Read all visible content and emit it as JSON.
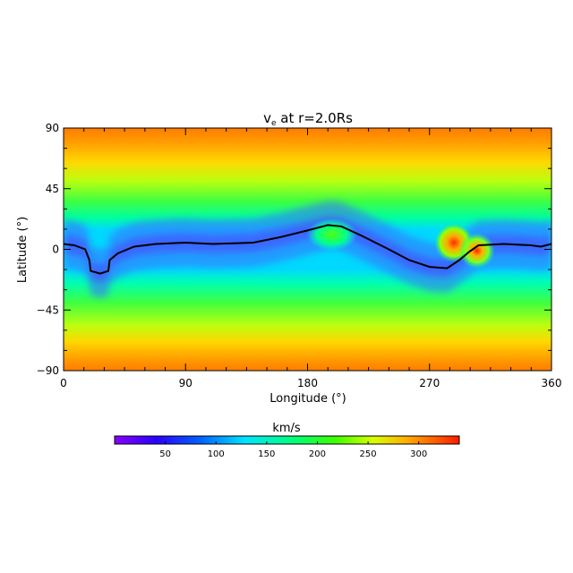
{
  "chart_data": {
    "type": "heatmap",
    "title": "v",
    "title_subscript": "e",
    "title_rest": " at r=2.0Rs",
    "xlabel": "Longitude (°)",
    "ylabel": "Latitude (°)",
    "xlim": [
      0,
      360
    ],
    "ylim": [
      -90,
      90
    ],
    "xticks": [
      0,
      90,
      180,
      270,
      360
    ],
    "xtick_labels": [
      "0",
      "90",
      "180",
      "270",
      "360"
    ],
    "yticks": [
      90,
      45,
      0,
      -45,
      -90
    ],
    "ytick_labels": [
      "90",
      "45",
      "0",
      "−45",
      "−90"
    ],
    "colorbar": {
      "label": "km/s",
      "range": [
        0,
        340
      ],
      "ticks": [
        50,
        100,
        150,
        200,
        250,
        300
      ],
      "tick_labels": [
        "50",
        "100",
        "150",
        "200",
        "250",
        "300"
      ],
      "colormap": "rainbow"
    },
    "neutral_line": {
      "description_points_lon_lat": [
        [
          0,
          4
        ],
        [
          8,
          3
        ],
        [
          16,
          0
        ],
        [
          19,
          -8
        ],
        [
          20,
          -16
        ],
        [
          27,
          -18
        ],
        [
          33,
          -16
        ],
        [
          34,
          -8
        ],
        [
          40,
          -3
        ],
        [
          52,
          2
        ],
        [
          68,
          4
        ],
        [
          90,
          5
        ],
        [
          110,
          4
        ],
        [
          140,
          5
        ],
        [
          160,
          9
        ],
        [
          180,
          14
        ],
        [
          195,
          18
        ],
        [
          205,
          17
        ],
        [
          220,
          10
        ],
        [
          240,
          0
        ],
        [
          255,
          -8
        ],
        [
          270,
          -13
        ],
        [
          283,
          -14
        ],
        [
          292,
          -8
        ],
        [
          299,
          -2
        ],
        [
          306,
          3
        ],
        [
          325,
          4
        ],
        [
          345,
          3
        ],
        [
          352,
          2
        ],
        [
          360,
          4
        ]
      ]
    },
    "fast_spots_lon_lat_kms": [
      [
        288,
        5,
        310
      ],
      [
        305,
        -1,
        330
      ],
      [
        198,
        11,
        190
      ]
    ]
  }
}
